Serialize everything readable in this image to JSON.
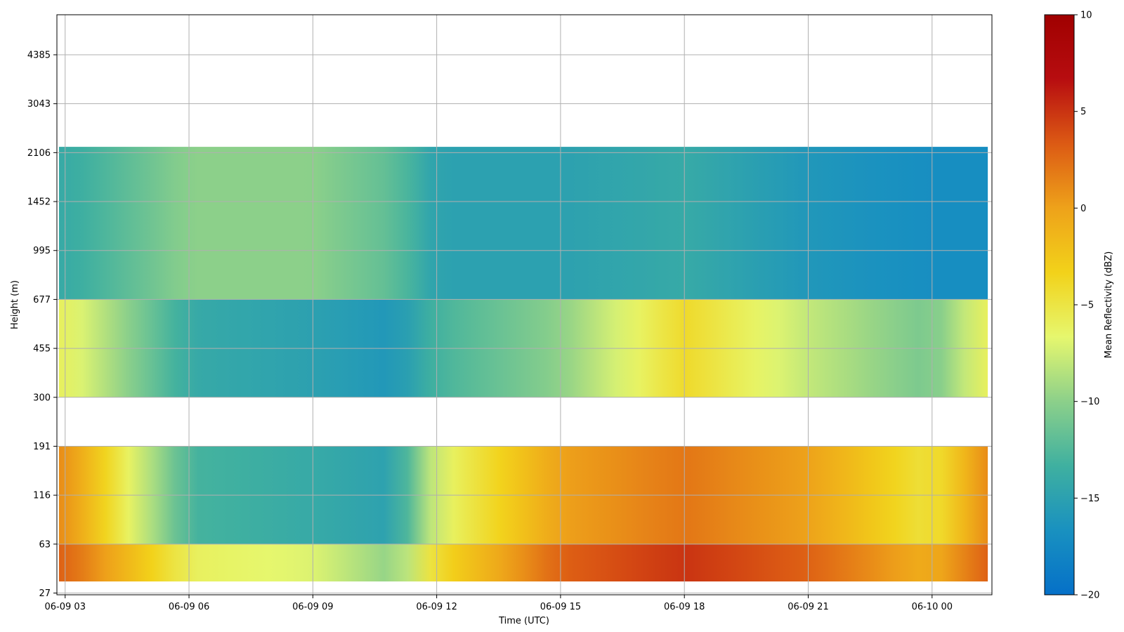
{
  "chart_data": {
    "type": "heatmap",
    "xlabel": "Time (UTC)",
    "ylabel": "Height (m)",
    "colorbar_label": "Mean Reflectivity (dBZ)",
    "x_ticks": [
      "06-09 03",
      "06-09 06",
      "06-09 09",
      "06-09 12",
      "06-09 15",
      "06-09 18",
      "06-09 21",
      "06-10 00"
    ],
    "x_tick_hours": [
      3,
      6,
      9,
      12,
      15,
      18,
      21,
      24
    ],
    "xlim_hours": [
      2.8,
      25.45
    ],
    "y_ticks": [
      27,
      63,
      116,
      191,
      300,
      455,
      677,
      995,
      1452,
      2106,
      3043,
      4385
    ],
    "data_xlim_hours": [
      2.85,
      25.35
    ],
    "data_ylim_m": [
      33,
      2200
    ],
    "colorbar_ticks": [
      10,
      5,
      0,
      -5,
      -10,
      -15,
      -20
    ],
    "colorbar_range": [
      -20,
      10
    ],
    "colormap": [
      "#0570c8",
      "#1991c0",
      "#3fb0a0",
      "#8cd08a",
      "#e6f76e",
      "#f2d21a",
      "#eea21a",
      "#dc5a14",
      "#b70d10",
      "#a00000"
    ],
    "grid": true,
    "layers": [
      {
        "height_range_m": [
          33,
          63
        ],
        "time_profile_dbz": {
          "hours": [
            3,
            6,
            9,
            11,
            12,
            15,
            18,
            21,
            24,
            25.3
          ],
          "dbz": [
            3,
            -6,
            -7,
            -10,
            -4,
            3,
            5,
            3,
            -1,
            3
          ]
        }
      },
      {
        "height_range_m": [
          63,
          191
        ],
        "time_profile_dbz": {
          "hours": [
            3,
            6,
            9,
            11,
            12,
            15,
            18,
            21,
            24,
            25.3
          ],
          "dbz": [
            1,
            -13,
            -14,
            -15,
            -7,
            0,
            2,
            0,
            -5,
            1
          ]
        }
      },
      {
        "height_range_m": [
          300,
          677
        ],
        "time_profile_dbz": {
          "hours": [
            3,
            6,
            9,
            11,
            12,
            15,
            18,
            21,
            24,
            25.3
          ],
          "dbz": [
            -6,
            -14,
            -15,
            -16,
            -13,
            -10,
            -4,
            -8,
            -11,
            -6
          ]
        }
      },
      {
        "height_range_m": [
          677,
          2200
        ],
        "time_profile_dbz": {
          "hours": [
            3,
            6,
            9,
            11,
            12,
            15,
            18,
            21,
            24,
            25.3
          ],
          "dbz": [
            -14,
            -10,
            -10,
            -12,
            -15,
            -15,
            -14,
            -16,
            -17,
            -17
          ]
        }
      }
    ]
  }
}
